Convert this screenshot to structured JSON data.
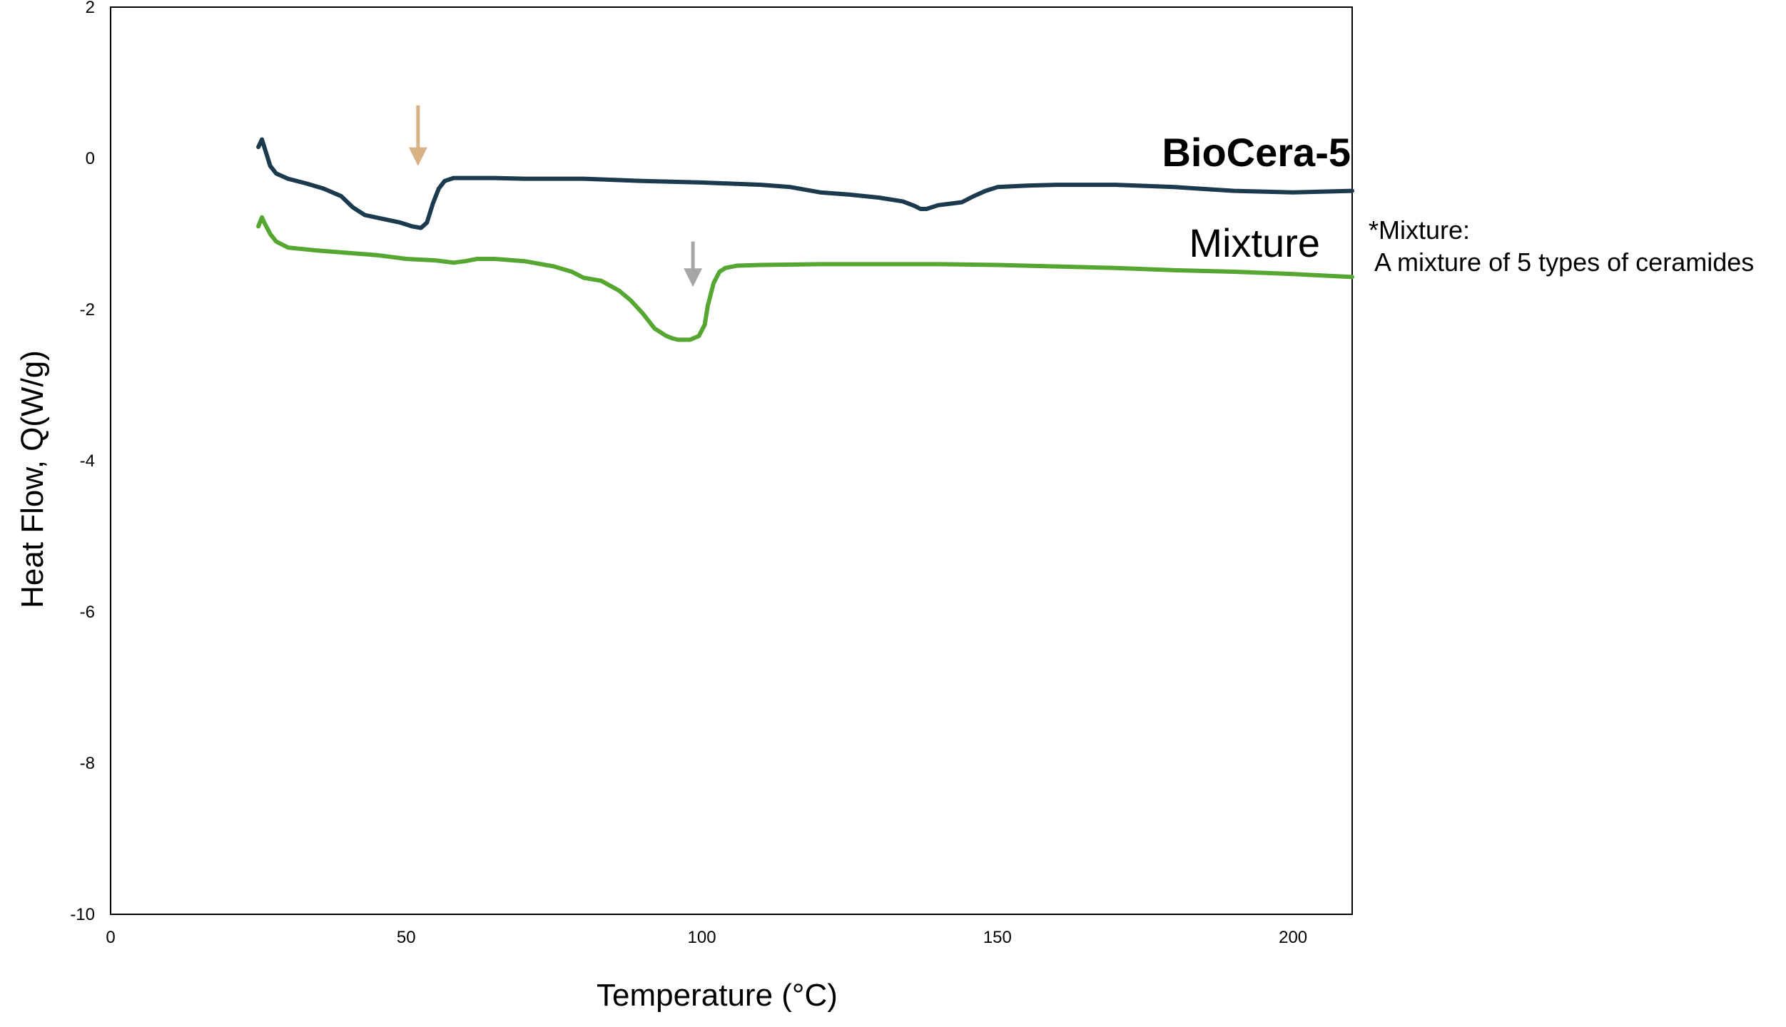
{
  "chart_data": {
    "type": "line",
    "title": "",
    "xlabel": "Temperature (°C)",
    "ylabel": "Heat Flow, Q(W/g)",
    "xlim": [
      0,
      210
    ],
    "ylim": [
      -10,
      2
    ],
    "xticks": [
      0,
      50,
      100,
      150,
      200
    ],
    "yticks": [
      2,
      0,
      -2,
      -4,
      -6,
      -8,
      -10
    ],
    "grid": false,
    "series": [
      {
        "name": "BioCera-5",
        "label": "BioCera-5",
        "color": "#1c3a4d",
        "label_bold": true,
        "x": [
          25,
          25.6,
          26,
          27,
          28,
          30,
          33,
          36,
          39,
          41,
          43,
          46,
          49,
          51,
          52.5,
          53.5,
          54.5,
          55.5,
          56.5,
          58,
          60,
          65,
          70,
          80,
          90,
          100,
          110,
          115,
          120,
          125,
          130,
          134,
          136,
          137,
          138,
          140,
          142,
          144,
          146,
          148,
          150,
          155,
          160,
          170,
          180,
          190,
          200,
          210
        ],
        "y": [
          0.15,
          0.25,
          0.15,
          -0.1,
          -0.2,
          -0.27,
          -0.33,
          -0.4,
          -0.5,
          -0.65,
          -0.75,
          -0.8,
          -0.85,
          -0.9,
          -0.92,
          -0.85,
          -0.6,
          -0.4,
          -0.3,
          -0.26,
          -0.26,
          -0.26,
          -0.27,
          -0.27,
          -0.3,
          -0.32,
          -0.35,
          -0.38,
          -0.45,
          -0.48,
          -0.52,
          -0.57,
          -0.63,
          -0.67,
          -0.67,
          -0.62,
          -0.6,
          -0.58,
          -0.5,
          -0.43,
          -0.38,
          -0.36,
          -0.35,
          -0.35,
          -0.38,
          -0.43,
          -0.45,
          -0.43
        ]
      },
      {
        "name": "Mixture",
        "label": "Mixture",
        "color": "#56a632",
        "label_bold": false,
        "x": [
          25,
          25.6,
          26,
          27,
          28,
          30,
          35,
          40,
          45,
          50,
          55,
          58,
          60,
          62,
          65,
          70,
          75,
          78,
          80,
          83,
          86,
          88,
          90,
          92,
          94,
          95,
          96,
          98,
          99.5,
          100.5,
          101,
          102,
          103,
          104,
          106,
          110,
          120,
          130,
          140,
          150,
          160,
          170,
          180,
          190,
          200,
          210
        ],
        "y": [
          -0.9,
          -0.78,
          -0.85,
          -1.0,
          -1.1,
          -1.18,
          -1.22,
          -1.25,
          -1.28,
          -1.33,
          -1.35,
          -1.38,
          -1.36,
          -1.33,
          -1.33,
          -1.36,
          -1.43,
          -1.5,
          -1.58,
          -1.62,
          -1.75,
          -1.88,
          -2.05,
          -2.25,
          -2.35,
          -2.38,
          -2.4,
          -2.4,
          -2.35,
          -2.2,
          -1.95,
          -1.65,
          -1.5,
          -1.45,
          -1.42,
          -1.41,
          -1.4,
          -1.4,
          -1.4,
          -1.41,
          -1.43,
          -1.45,
          -1.48,
          -1.5,
          -1.53,
          -1.57
        ]
      }
    ],
    "annotations": [
      {
        "name": "biocera-arrow",
        "type": "arrow",
        "x": 52,
        "y_start": 0.7,
        "y_end": -0.1,
        "color": "#d8b184"
      },
      {
        "name": "mixture-arrow",
        "type": "arrow",
        "x": 98.5,
        "y_start": -1.1,
        "y_end": -1.7,
        "color": "#a6a6a6"
      }
    ],
    "note": {
      "line1": "*Mixture:",
      "line2": " A mixture of 5 types of ceramides"
    }
  }
}
